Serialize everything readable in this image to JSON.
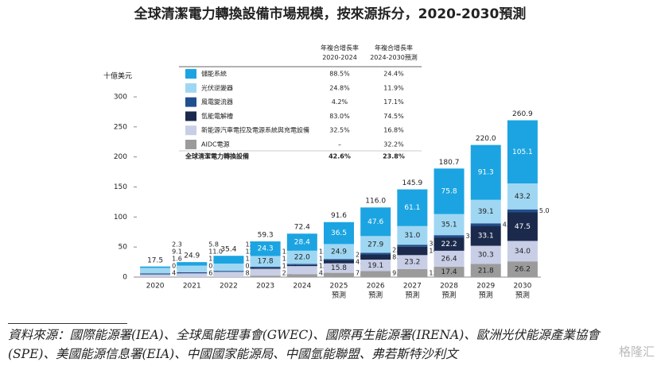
{
  "chart_data": {
    "type": "bar",
    "stacked": true,
    "title": "全球清潔電力轉換設備市場規模，按來源拆分，2020-2030預測",
    "y_unit_label": "十億美元",
    "categories": [
      "2020",
      "2021",
      "2022",
      "2023",
      "2024",
      "2025",
      "2026",
      "2027",
      "2028",
      "2029",
      "2030"
    ],
    "x_sublabels": [
      null,
      null,
      null,
      null,
      null,
      "預測",
      "預測",
      "預測",
      "預測",
      "預測",
      "預測"
    ],
    "ylim": [
      0,
      300
    ],
    "yticks": [
      0,
      50,
      100,
      150,
      200,
      250,
      300
    ],
    "grid": false,
    "legend_headers": [
      "年複合增長率\n2020-2024",
      "年複合增長率\n2024-2030預測"
    ],
    "series": [
      {
        "name": "AIDC電源",
        "color": "#9b9b9b",
        "cagr": [
          "–",
          "32.2%"
        ],
        "values": [
          null,
          null,
          null,
          2.4,
          4.9,
          7.1,
          9.9,
          13.4,
          17.4,
          21.8,
          26.2
        ],
        "value_labels": [
          null,
          null,
          null,
          "2.4",
          "4.9",
          "7.1",
          "9.9",
          "13.4",
          "17.4",
          "21.8",
          "26.2"
        ]
      },
      {
        "name": "新能源汽車電控及電源系統與充電設備",
        "color": "#c8cee6",
        "cagr": [
          "32.5%",
          "16.8%"
        ],
        "values": [
          4.4,
          6.2,
          8.6,
          11.3,
          13.4,
          15.8,
          19.1,
          23.2,
          26.4,
          30.3,
          34.0
        ],
        "value_labels": [
          "4.4",
          "6.2",
          "8.6",
          "11.3",
          "13.4",
          "15.8",
          "19.1",
          "23.2",
          "26.4",
          "30.3",
          "34.0"
        ]
      },
      {
        "name": "氫能電解槽",
        "color": "#1b2a4c",
        "cagr": [
          "83.0%",
          "74.5%"
        ],
        "values": [
          0.2,
          0.3,
          0.3,
          1.8,
          1.7,
          4.8,
          8.6,
          14.0,
          22.2,
          33.1,
          47.5
        ],
        "value_labels": [
          "0.2",
          "0.3",
          "0.3",
          "1.8",
          "1.7",
          "4.8",
          "8.6",
          "14.0",
          "22.2",
          "33.1",
          "47.5"
        ]
      },
      {
        "name": "風電變流器",
        "color": "#214f8f",
        "cagr": [
          "4.2%",
          "17.1%"
        ],
        "values": [
          1.6,
          1.6,
          1.5,
          1.8,
          1.9,
          2.4,
          2.8,
          3.3,
          3.8,
          4.3,
          5.0
        ],
        "value_labels": [
          "1.6",
          "1.6",
          "1.5",
          "1.8",
          "1.9",
          "2.4",
          "2.8",
          "3.3",
          "3.8",
          "4.3",
          "5.0"
        ]
      },
      {
        "name": "光伏逆變器",
        "color": "#9fd7f3",
        "cagr": [
          "24.8%",
          "11.9%"
        ],
        "values": [
          9.1,
          11.0,
          12.1,
          17.8,
          22.0,
          24.9,
          27.9,
          31.0,
          35.1,
          39.1,
          43.2
        ],
        "value_labels": [
          "9.1",
          "11.0",
          "12.1",
          "17.8",
          "22.0",
          "24.9",
          "27.9",
          "31.0",
          "35.1",
          "39.1",
          "43.2"
        ]
      },
      {
        "name": "儲能系統",
        "color": "#1ba4e1",
        "cagr": [
          "88.5%",
          "24.4%"
        ],
        "values": [
          2.3,
          5.8,
          12.9,
          24.3,
          28.4,
          36.5,
          47.6,
          61.1,
          75.8,
          91.3,
          105.1
        ],
        "value_labels": [
          "2.3",
          "5.8",
          "12.9",
          "24.3",
          "28.4",
          "36.5",
          "47.6",
          "61.1",
          "75.8",
          "91.3",
          "105.1"
        ]
      }
    ],
    "total": {
      "name": "全球清潔電力轉換設備",
      "cagr": [
        "42.6%",
        "23.8%"
      ],
      "values": [
        17.5,
        24.9,
        35.4,
        59.3,
        72.4,
        91.6,
        116.0,
        145.9,
        180.7,
        220.0,
        260.9
      ],
      "value_labels": [
        "17.5",
        "24.9",
        "35.4",
        "59.3",
        "72.4",
        "91.6",
        "116.0",
        "145.9",
        "180.7",
        "220.0",
        "260.9"
      ]
    }
  },
  "footer": {
    "source": "資料來源：國際能源署(IEA)、全球風能理事會(GWEC)、國際再生能源署(IRENA)、歐洲光伏能源產業協會(SPE)、美國能源信息署(EIA)、中國國家能源局、中國氫能聯盟、弗若斯特沙利文",
    "watermark": "格隆汇"
  }
}
